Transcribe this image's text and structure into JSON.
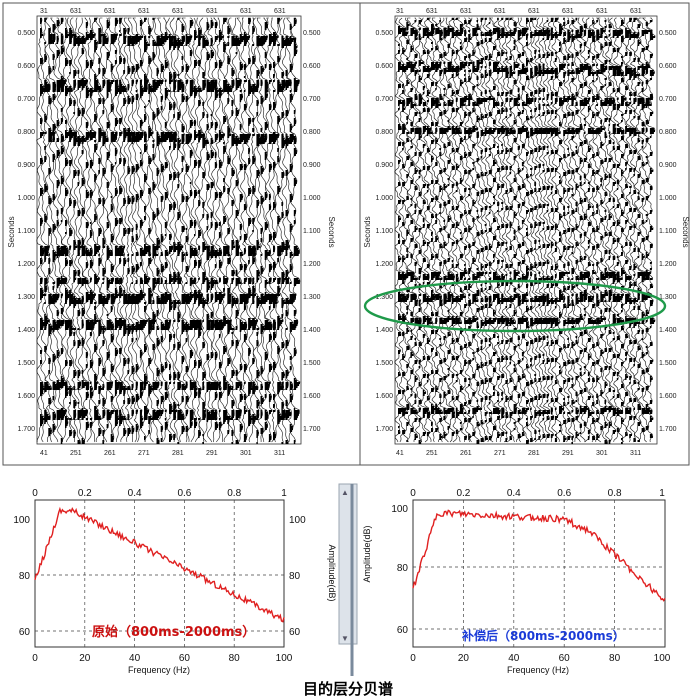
{
  "seismic": {
    "left": {
      "top_ticks": [
        "31",
        "631",
        "631",
        "631",
        "631",
        "631",
        "631",
        "631"
      ],
      "bottom_ticks": [
        "41",
        "251",
        "261",
        "271",
        "281",
        "291",
        "301",
        "311"
      ],
      "y_ticks": [
        "0.500",
        "0.600",
        "0.700",
        "0.800",
        "0.900",
        "1.000",
        "1.100",
        "1.200",
        "1.300",
        "1.400",
        "1.500",
        "1.600",
        "1.700"
      ],
      "y_label": "Seconds"
    },
    "right": {
      "top_ticks": [
        "31",
        "631",
        "631",
        "631",
        "631",
        "631",
        "631",
        "631"
      ],
      "bottom_ticks": [
        "41",
        "251",
        "261",
        "271",
        "281",
        "291",
        "301",
        "311"
      ],
      "y_ticks": [
        "0.500",
        "0.600",
        "0.700",
        "0.800",
        "0.900",
        "1.000",
        "1.100",
        "1.200",
        "1.300",
        "1.400",
        "1.500",
        "1.600",
        "1.700"
      ],
      "y_label": "Seconds",
      "highlight_color": "#1f9a4a"
    }
  },
  "spectra": {
    "left": {
      "top_ticks": [
        "0",
        "0.2",
        "0.4",
        "0.6",
        "0.8",
        "1"
      ],
      "bottom_ticks": [
        "0",
        "20",
        "40",
        "60",
        "80",
        "100"
      ],
      "y_ticks": [
        "100",
        "80",
        "60"
      ],
      "x_title": "Frequency (Hz)",
      "y_title": "Amplitude(dB)",
      "caption": "原始（800ms-2000ms）",
      "line_color": "#e02020"
    },
    "right": {
      "top_ticks": [
        "0",
        "0.2",
        "0.4",
        "0.6",
        "0.8",
        "1"
      ],
      "bottom_ticks": [
        "0",
        "20",
        "40",
        "60",
        "80",
        "100"
      ],
      "y_ticks": [
        "100",
        "80",
        "60"
      ],
      "x_title": "Frequency (Hz)",
      "y_title": "Amplitude(dB)",
      "caption": "补偿后（800ms-2000ms）",
      "line_color": "#e02020"
    }
  },
  "main_caption": "目的层分贝谱"
}
